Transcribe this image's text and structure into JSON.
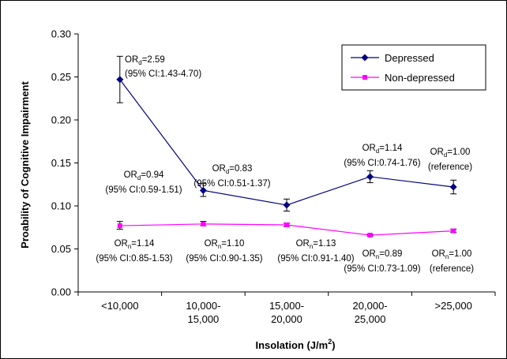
{
  "chart_data": {
    "type": "line",
    "xlabel": "Insolation (J/m",
    "xlabel_superscript": "2",
    "xlabel_suffix": ")",
    "ylabel": "Proability of Cognitive Impairment",
    "ylim": [
      0.0,
      0.3
    ],
    "yticks": [
      "0.00",
      "0.05",
      "0.10",
      "0.15",
      "0.20",
      "0.25",
      "0.30"
    ],
    "grid": false,
    "legend_position": "top-right",
    "categories": [
      [
        "<10,000"
      ],
      [
        "10,000-",
        "15,000"
      ],
      [
        "15,000-",
        "20,000"
      ],
      [
        "20,000-",
        "25,000"
      ],
      [
        ">25,000"
      ]
    ],
    "series": [
      {
        "name": "Depressed",
        "color": "#000080",
        "marker": "diamond",
        "values": [
          0.247,
          0.118,
          0.101,
          0.134,
          0.122
        ],
        "err_low": [
          0.22,
          0.111,
          0.094,
          0.127,
          0.114
        ],
        "err_high": [
          0.274,
          0.126,
          0.108,
          0.141,
          0.13
        ],
        "labels": [
          {
            "or_main": "OR",
            "or_sub": "d",
            "or_val": "=2.59",
            "ci": "(95% CI:1.43-4.70)"
          },
          {
            "or_main": "OR",
            "or_sub": "d",
            "or_val": "=0.94",
            "ci": "(95% CI:0.59-1.51)"
          },
          {
            "or_main": "OR",
            "or_sub": "d",
            "or_val": "=0.83",
            "ci": "(95% CI:0.51-1.37)"
          },
          {
            "or_main": "OR",
            "or_sub": "d",
            "or_val": "=1.14",
            "ci": "(95% CI:0.74-1.76)"
          },
          {
            "or_main": "OR",
            "or_sub": "d",
            "or_val": "=1.00",
            "ci": "(reference)"
          }
        ]
      },
      {
        "name": "Non-depressed",
        "color": "#ff00ff",
        "marker": "square",
        "values": [
          0.077,
          0.079,
          0.078,
          0.066,
          0.071
        ],
        "err_low": [
          0.073,
          0.077,
          0.076,
          0.065,
          0.069
        ],
        "err_high": [
          0.082,
          0.082,
          0.08,
          0.067,
          0.073
        ],
        "labels": [
          {
            "or_main": "OR",
            "or_sub": "n",
            "or_val": "=1.14",
            "ci": "(95% CI:0.85-1.53)"
          },
          {
            "or_main": "OR",
            "or_sub": "n",
            "or_val": "=1.10",
            "ci": "(95% CI:0.90-1.35)"
          },
          {
            "or_main": "OR",
            "or_sub": "n",
            "or_val": "=1.13",
            "ci": "(95% CI:0.91-1.40)"
          },
          {
            "or_main": "OR",
            "or_sub": "n",
            "or_val": "=0.89",
            "ci": "(95% CI:0.73-1.09)"
          },
          {
            "or_main": "OR",
            "or_sub": "n",
            "or_val": "=1.00",
            "ci": "(reference)"
          }
        ]
      }
    ]
  }
}
